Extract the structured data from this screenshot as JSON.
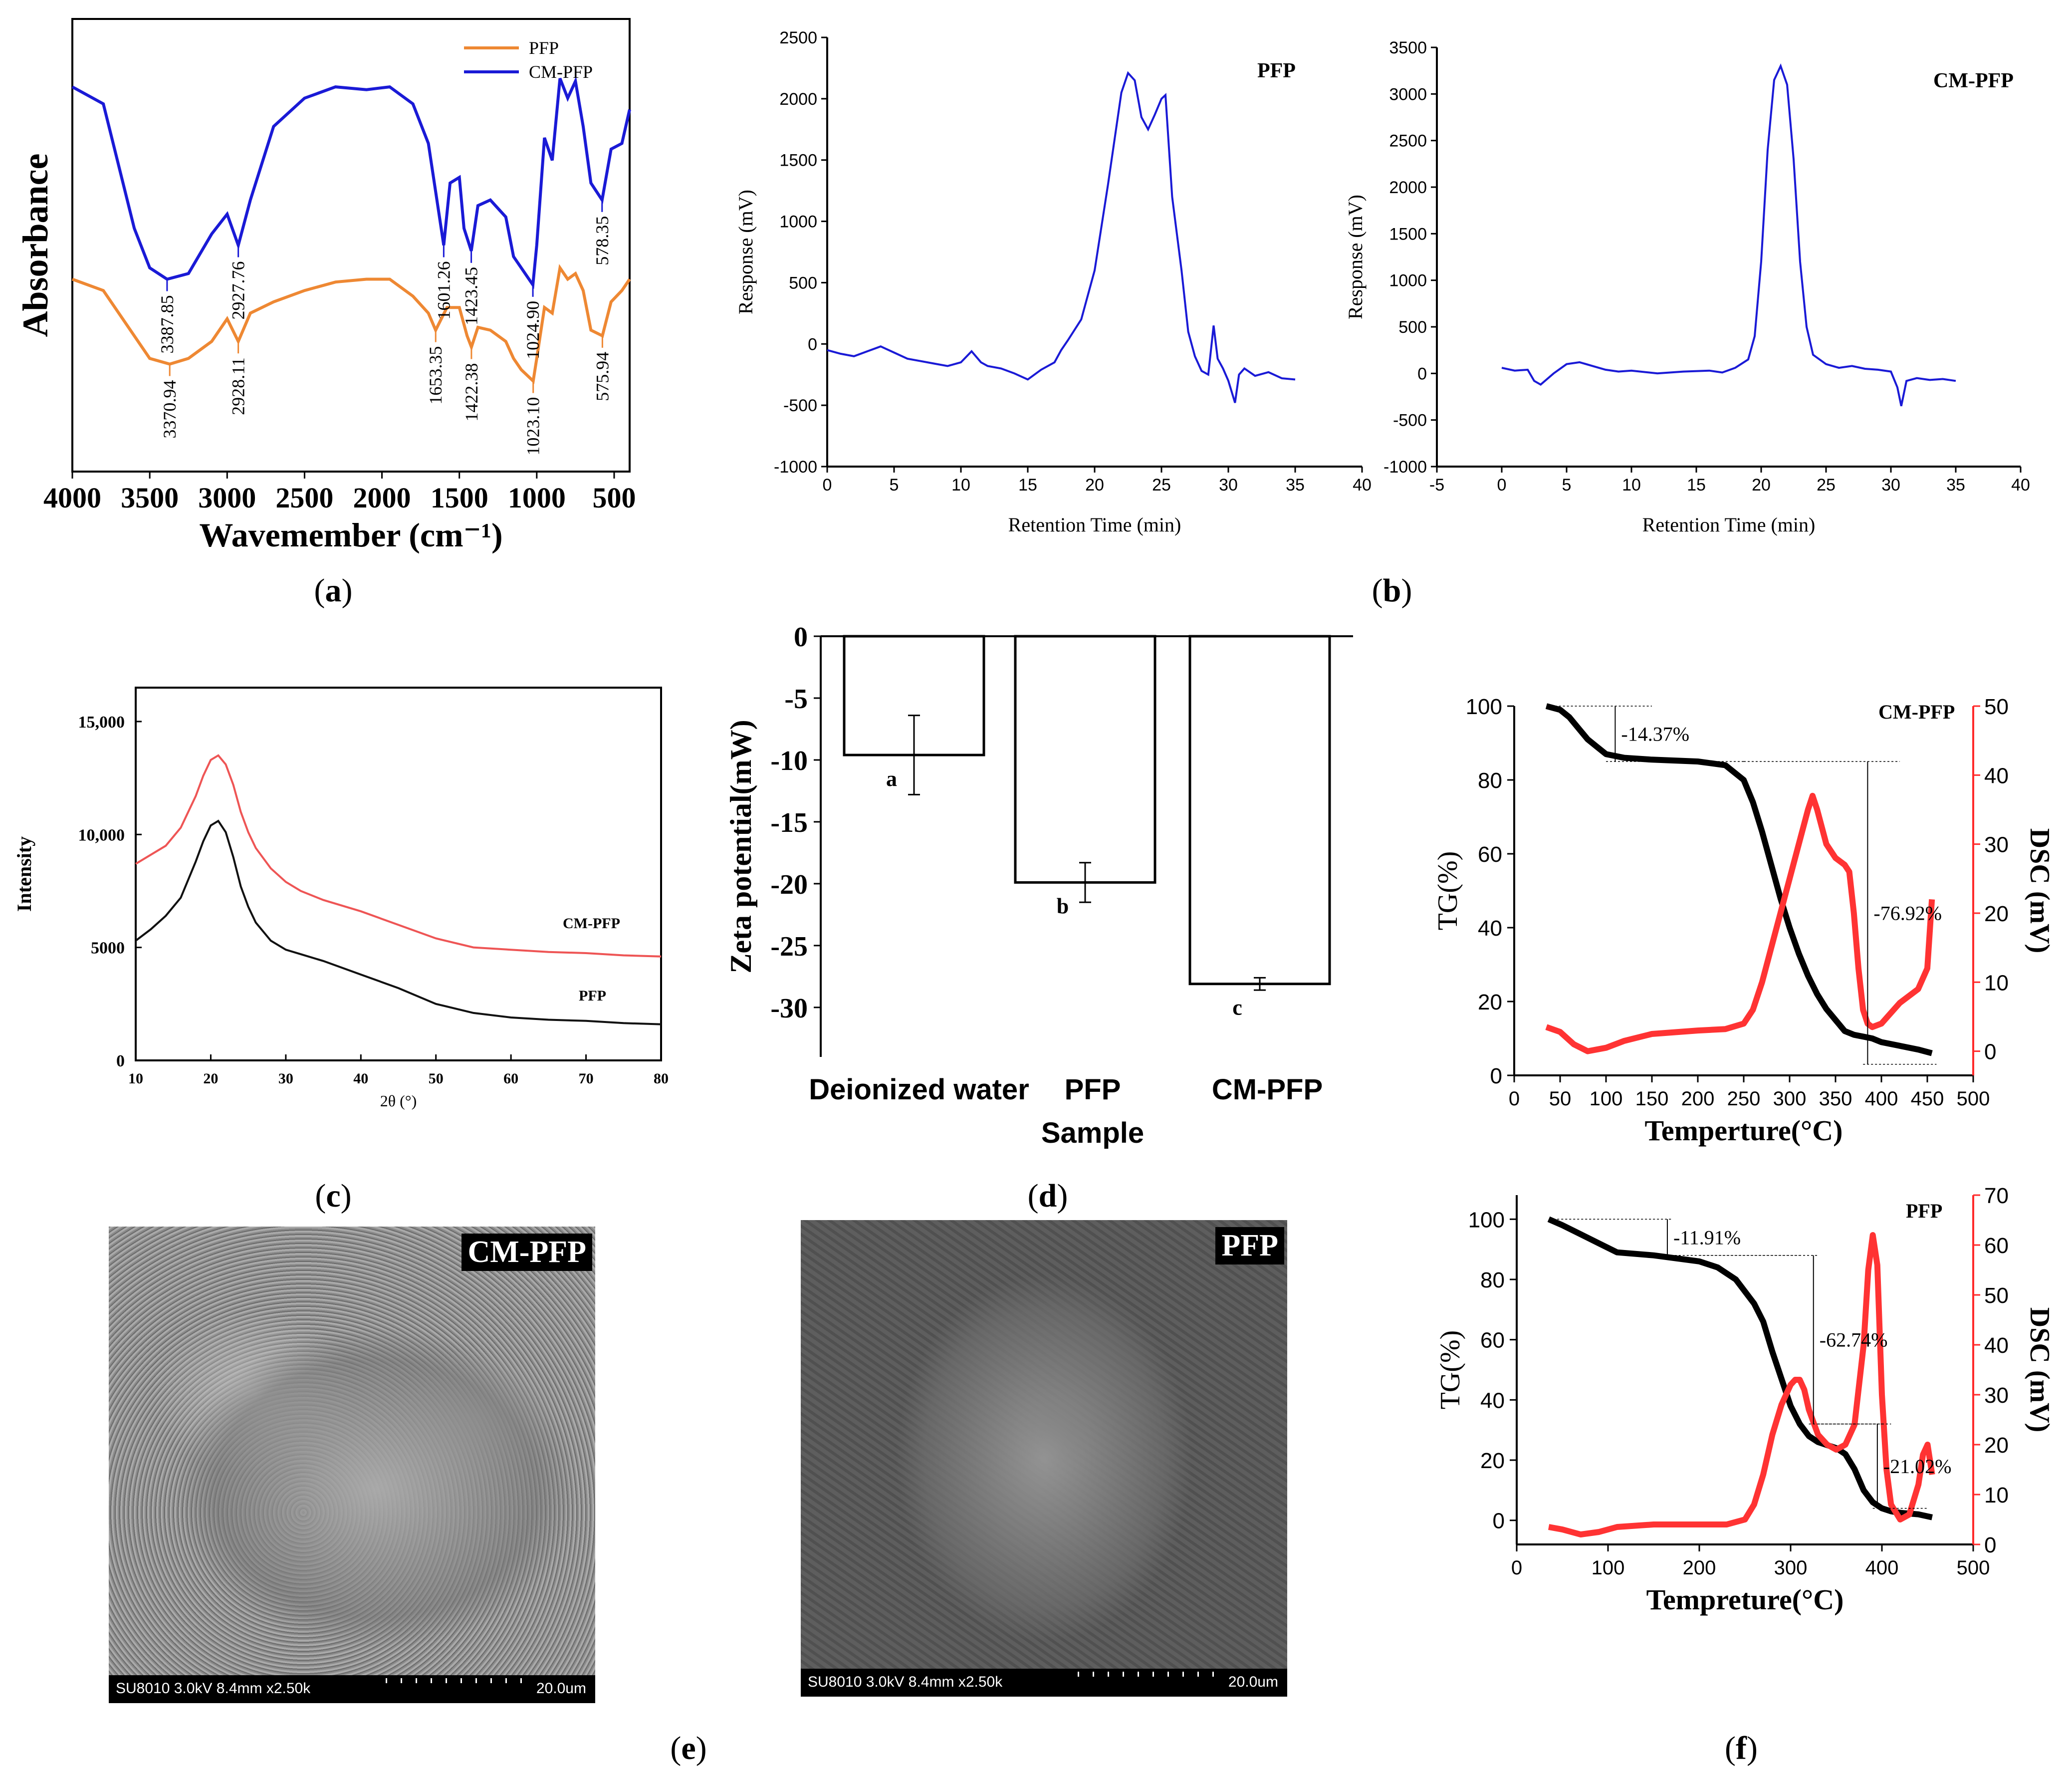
{
  "panel_labels": [
    "(a)",
    "(b)",
    "(c)",
    "(d)",
    "(e)",
    "(f)"
  ],
  "chart_data": [
    {
      "id": "a",
      "type": "line",
      "xlabel": "Wavemember (cm⁻¹)",
      "ylabel": "Absorbance",
      "xlim": [
        4000,
        400
      ],
      "xticks": [
        4000,
        3500,
        3000,
        2500,
        2000,
        1500,
        1000,
        500
      ],
      "legend_position": "top-right",
      "series": [
        {
          "name": "CM-PFP",
          "color": "#1a1ad6",
          "x": [
            4000,
            3800,
            3600,
            3500,
            3388,
            3250,
            3100,
            3000,
            2928,
            2850,
            2700,
            2500,
            2300,
            2100,
            1950,
            1800,
            1700,
            1601,
            1560,
            1500,
            1470,
            1423,
            1380,
            1300,
            1200,
            1150,
            1100,
            1025,
            1000,
            950,
            900,
            850,
            800,
            750,
            700,
            650,
            578,
            520,
            450,
            400
          ],
          "y": [
            6.8,
            6.5,
            4.3,
            3.6,
            3.4,
            3.5,
            4.2,
            4.55,
            4.0,
            4.8,
            6.1,
            6.6,
            6.8,
            6.75,
            6.8,
            6.5,
            5.8,
            4.0,
            5.1,
            5.2,
            4.3,
            3.9,
            4.7,
            4.8,
            4.5,
            3.8,
            3.6,
            3.3,
            4.0,
            5.9,
            5.5,
            6.95,
            6.6,
            6.9,
            6.1,
            5.1,
            4.8,
            5.7,
            5.8,
            6.4
          ]
        },
        {
          "name": "PFP",
          "color": "#ee8833",
          "x": [
            4000,
            3800,
            3600,
            3500,
            3371,
            3250,
            3100,
            3000,
            2928,
            2850,
            2700,
            2500,
            2300,
            2100,
            1950,
            1800,
            1700,
            1653,
            1580,
            1500,
            1450,
            1422,
            1380,
            1300,
            1200,
            1150,
            1100,
            1023,
            1000,
            950,
            900,
            850,
            800,
            750,
            700,
            650,
            576,
            520,
            450,
            400
          ],
          "y": [
            3.4,
            3.2,
            2.4,
            2.0,
            1.9,
            2.0,
            2.3,
            2.7,
            2.3,
            2.8,
            3.0,
            3.2,
            3.35,
            3.4,
            3.4,
            3.1,
            2.8,
            2.5,
            2.9,
            2.9,
            2.4,
            2.2,
            2.55,
            2.5,
            2.3,
            2.0,
            1.8,
            1.6,
            2.0,
            2.9,
            2.8,
            3.6,
            3.4,
            3.5,
            3.2,
            2.5,
            2.4,
            3.0,
            3.2,
            3.4
          ]
        }
      ],
      "annotations": {
        "CM-PFP": [
          "3387.85",
          "2927.76",
          "1601.26",
          "1423.45",
          "1024.90",
          "578.35"
        ],
        "CM-PFP_x": [
          3388,
          2928,
          1601,
          1423,
          1025,
          578
        ],
        "PFP": [
          "3370.94",
          "2928.11",
          "1653.35",
          "1422.38",
          "1023.10",
          "575.94"
        ],
        "PFP_x": [
          3371,
          2928,
          1653,
          1422,
          1023,
          576
        ]
      }
    },
    {
      "id": "b1",
      "type": "line",
      "title": "PFP",
      "xlabel": "Retention Time (min)",
      "ylabel": "Response (mV)",
      "xlim": [
        0,
        40
      ],
      "ylim": [
        -1000,
        2500
      ],
      "xticks": [
        0,
        5,
        10,
        15,
        20,
        25,
        30,
        35,
        40
      ],
      "yticks": [
        -1000,
        -500,
        0,
        500,
        1000,
        1500,
        2000,
        2500
      ],
      "series": [
        {
          "name": "",
          "color": "#1a1ad6",
          "x": [
            0,
            1,
            2,
            3,
            4,
            5,
            6,
            7,
            8,
            9,
            10,
            10.8,
            11.5,
            12,
            13,
            14,
            15,
            16,
            17,
            17.5,
            18,
            19,
            20,
            21,
            22,
            22.5,
            23,
            23.5,
            24,
            24.5,
            25,
            25.3,
            25.8,
            26.5,
            27,
            27.5,
            28,
            28.5,
            28.9,
            29.2,
            29.6,
            30,
            30.5,
            30.8,
            31.2,
            32,
            33,
            34,
            35
          ],
          "y": [
            -50,
            -80,
            -100,
            -60,
            -20,
            -70,
            -120,
            -140,
            -160,
            -180,
            -150,
            -60,
            -150,
            -180,
            -200,
            -240,
            -290,
            -210,
            -150,
            -50,
            30,
            200,
            600,
            1300,
            2050,
            2210,
            2150,
            1850,
            1750,
            1870,
            2000,
            2030,
            1200,
            600,
            100,
            -100,
            -220,
            -250,
            150,
            -120,
            -200,
            -300,
            -480,
            -250,
            -200,
            -260,
            -230,
            -280,
            -290
          ]
        }
      ]
    },
    {
      "id": "b2",
      "type": "line",
      "title": "CM-PFP",
      "xlabel": "Retention Time (min)",
      "ylabel": "Response (mV)",
      "xlim": [
        -5,
        40
      ],
      "ylim": [
        -1000,
        3500
      ],
      "xticks": [
        -5,
        0,
        5,
        10,
        15,
        20,
        25,
        30,
        35,
        40
      ],
      "yticks": [
        -1000,
        -500,
        0,
        500,
        1000,
        1500,
        2000,
        2500,
        3000,
        3500
      ],
      "series": [
        {
          "name": "",
          "color": "#1a1ad6",
          "x": [
            0,
            1,
            2,
            2.5,
            3,
            4,
            5,
            6,
            7,
            8,
            9,
            10,
            12,
            14,
            16,
            17,
            18,
            19,
            19.5,
            20,
            20.5,
            21,
            21.5,
            22,
            22.5,
            23,
            23.5,
            24,
            25,
            26,
            27,
            28,
            29,
            30,
            30.5,
            30.8,
            31.2,
            32,
            33,
            34,
            35
          ],
          "y": [
            60,
            30,
            40,
            -80,
            -120,
            0,
            100,
            120,
            80,
            40,
            20,
            30,
            0,
            20,
            30,
            10,
            60,
            150,
            400,
            1200,
            2400,
            3150,
            3300,
            3100,
            2300,
            1200,
            500,
            200,
            100,
            60,
            80,
            50,
            40,
            20,
            -150,
            -350,
            -80,
            -50,
            -70,
            -60,
            -80
          ]
        }
      ]
    },
    {
      "id": "c",
      "type": "line",
      "xlabel": "2θ (°)",
      "ylabel": "Intensity",
      "xlim": [
        10,
        80
      ],
      "ylim": [
        0,
        15000
      ],
      "xticks": [
        10,
        20,
        30,
        40,
        50,
        60,
        70,
        80
      ],
      "yticks": [
        0,
        5000,
        10000,
        15000
      ],
      "ytick_labels": [
        "0",
        "5000",
        "10,000",
        "15,000"
      ],
      "series": [
        {
          "name": "CM-PFP",
          "color": "#ee5555",
          "x": [
            10,
            12,
            14,
            16,
            18,
            19,
            20,
            21,
            22,
            23,
            24,
            25,
            26,
            28,
            30,
            32,
            35,
            40,
            45,
            50,
            55,
            60,
            65,
            70,
            75,
            80
          ],
          "y": [
            8700,
            9100,
            9500,
            10300,
            11700,
            12600,
            13300,
            13500,
            13100,
            12200,
            11000,
            10100,
            9400,
            8500,
            7900,
            7500,
            7100,
            6600,
            6000,
            5400,
            5000,
            4900,
            4800,
            4750,
            4650,
            4600
          ]
        },
        {
          "name": "PFP",
          "color": "#111111",
          "x": [
            10,
            12,
            14,
            16,
            18,
            19,
            20,
            21,
            22,
            23,
            24,
            25,
            26,
            28,
            30,
            32,
            35,
            40,
            45,
            50,
            55,
            60,
            65,
            70,
            75,
            80
          ],
          "y": [
            5300,
            5800,
            6400,
            7200,
            8800,
            9700,
            10400,
            10600,
            10100,
            9000,
            7700,
            6800,
            6100,
            5300,
            4900,
            4700,
            4400,
            3800,
            3200,
            2500,
            2100,
            1900,
            1800,
            1750,
            1650,
            1600
          ]
        }
      ],
      "series_labels": [
        "CM-PFP",
        "PFP"
      ]
    },
    {
      "id": "d",
      "type": "bar",
      "xlabel": "Sample",
      "ylabel": "Zeta potential(mW)",
      "ylim": [
        -34,
        0
      ],
      "yticks": [
        0,
        -5,
        -10,
        -15,
        -20,
        -25,
        -30
      ],
      "categories": [
        "Deionized water",
        "PFP",
        "CM-PFP"
      ],
      "values": [
        -9.6,
        -19.9,
        -28.1
      ],
      "errors": [
        3.2,
        1.6,
        0.5
      ],
      "letters": [
        "a",
        "b",
        "c"
      ]
    },
    {
      "id": "f1",
      "type": "line",
      "title": "CM-PFP",
      "xlabel": "Temperture(°C)",
      "ylabel": "TG(%)",
      "y2label": "DSC (mV)",
      "xlim": [
        0,
        500
      ],
      "ylim": [
        0,
        100
      ],
      "y2lim": [
        -3.5,
        50
      ],
      "xticks": [
        0,
        50,
        100,
        150,
        200,
        250,
        300,
        350,
        400,
        450,
        500
      ],
      "yticks": [
        0,
        20,
        40,
        60,
        80,
        100
      ],
      "y2ticks": [
        0,
        10,
        20,
        30,
        40,
        50
      ],
      "series": [
        {
          "name": "TG",
          "axis": "left",
          "color": "#000000",
          "x": [
            35,
            50,
            60,
            70,
            80,
            90,
            100,
            120,
            150,
            200,
            230,
            250,
            260,
            270,
            280,
            290,
            300,
            310,
            320,
            330,
            340,
            350,
            360,
            370,
            380,
            390,
            400,
            420,
            440,
            455
          ],
          "y": [
            100,
            99,
            97,
            94,
            91,
            89,
            87,
            86,
            85.5,
            85,
            84,
            80,
            74,
            66,
            57,
            48,
            40,
            33,
            27,
            22,
            18,
            15,
            12,
            11,
            10.5,
            10,
            9,
            8,
            7,
            6
          ]
        },
        {
          "name": "DSC",
          "axis": "right",
          "color": "#ff3333",
          "x": [
            35,
            50,
            65,
            80,
            100,
            120,
            150,
            200,
            230,
            250,
            260,
            270,
            280,
            290,
            300,
            310,
            320,
            325,
            330,
            340,
            350,
            360,
            365,
            370,
            375,
            380,
            385,
            390,
            400,
            420,
            440,
            450,
            455
          ],
          "y": [
            3.5,
            2.8,
            1,
            0,
            0.5,
            1.5,
            2.5,
            3,
            3.2,
            4,
            6,
            10,
            15,
            20,
            25,
            30,
            35,
            37,
            35,
            30,
            28,
            27,
            26,
            20,
            12,
            6,
            4,
            3.5,
            4,
            7,
            9,
            12,
            22
          ]
        }
      ],
      "annotations": [
        "-14.37%",
        "-76.92%"
      ]
    },
    {
      "id": "f2",
      "type": "line",
      "title": "PFP",
      "xlabel": "Tempreture(°C)",
      "ylabel": "TG(%)",
      "y2label": "DSC (mV)",
      "xlim": [
        0,
        500
      ],
      "ylim": [
        -8,
        108
      ],
      "y2lim": [
        0,
        70
      ],
      "xticks": [
        0,
        100,
        200,
        300,
        400,
        500
      ],
      "yticks": [
        0,
        20,
        40,
        60,
        80,
        100
      ],
      "y2ticks": [
        0,
        10,
        20,
        30,
        40,
        50,
        60,
        70
      ],
      "series": [
        {
          "name": "TG",
          "axis": "left",
          "color": "#000000",
          "x": [
            35,
            50,
            70,
            90,
            110,
            150,
            200,
            220,
            240,
            260,
            270,
            280,
            290,
            300,
            310,
            320,
            330,
            340,
            350,
            360,
            370,
            380,
            390,
            400,
            410,
            420,
            440,
            455
          ],
          "y": [
            100,
            98,
            95,
            92,
            89,
            88,
            86,
            84,
            80,
            72,
            66,
            56,
            47,
            38,
            32,
            28,
            26,
            25,
            24,
            22,
            17,
            10,
            6,
            4,
            3,
            2.5,
            2,
            1
          ]
        },
        {
          "name": "DSC",
          "axis": "right",
          "color": "#ff3333",
          "x": [
            35,
            50,
            70,
            90,
            110,
            150,
            200,
            230,
            250,
            260,
            270,
            280,
            290,
            300,
            305,
            310,
            315,
            320,
            330,
            340,
            350,
            360,
            370,
            380,
            385,
            390,
            395,
            400,
            405,
            410,
            420,
            430,
            440,
            445,
            450,
            455
          ],
          "y": [
            3.5,
            3,
            2,
            2.5,
            3.5,
            4,
            4,
            4,
            5,
            8,
            14,
            22,
            28,
            32,
            33,
            33,
            31,
            27,
            22,
            20,
            19,
            20,
            24,
            40,
            55,
            62,
            56,
            30,
            15,
            8,
            5,
            6,
            12,
            18,
            20,
            14
          ]
        }
      ],
      "annotations": [
        "-11.91%",
        "-62.74%",
        "-21.02%"
      ]
    }
  ],
  "sem_images": [
    {
      "label": "CM-PFP",
      "info": "SU8010 3.0kV 8.4mm x2.50k",
      "scale": "20.0um"
    },
    {
      "label": "PFP",
      "info": "SU8010 3.0kV 8.4mm x2.50k",
      "scale": "20.0um"
    }
  ]
}
